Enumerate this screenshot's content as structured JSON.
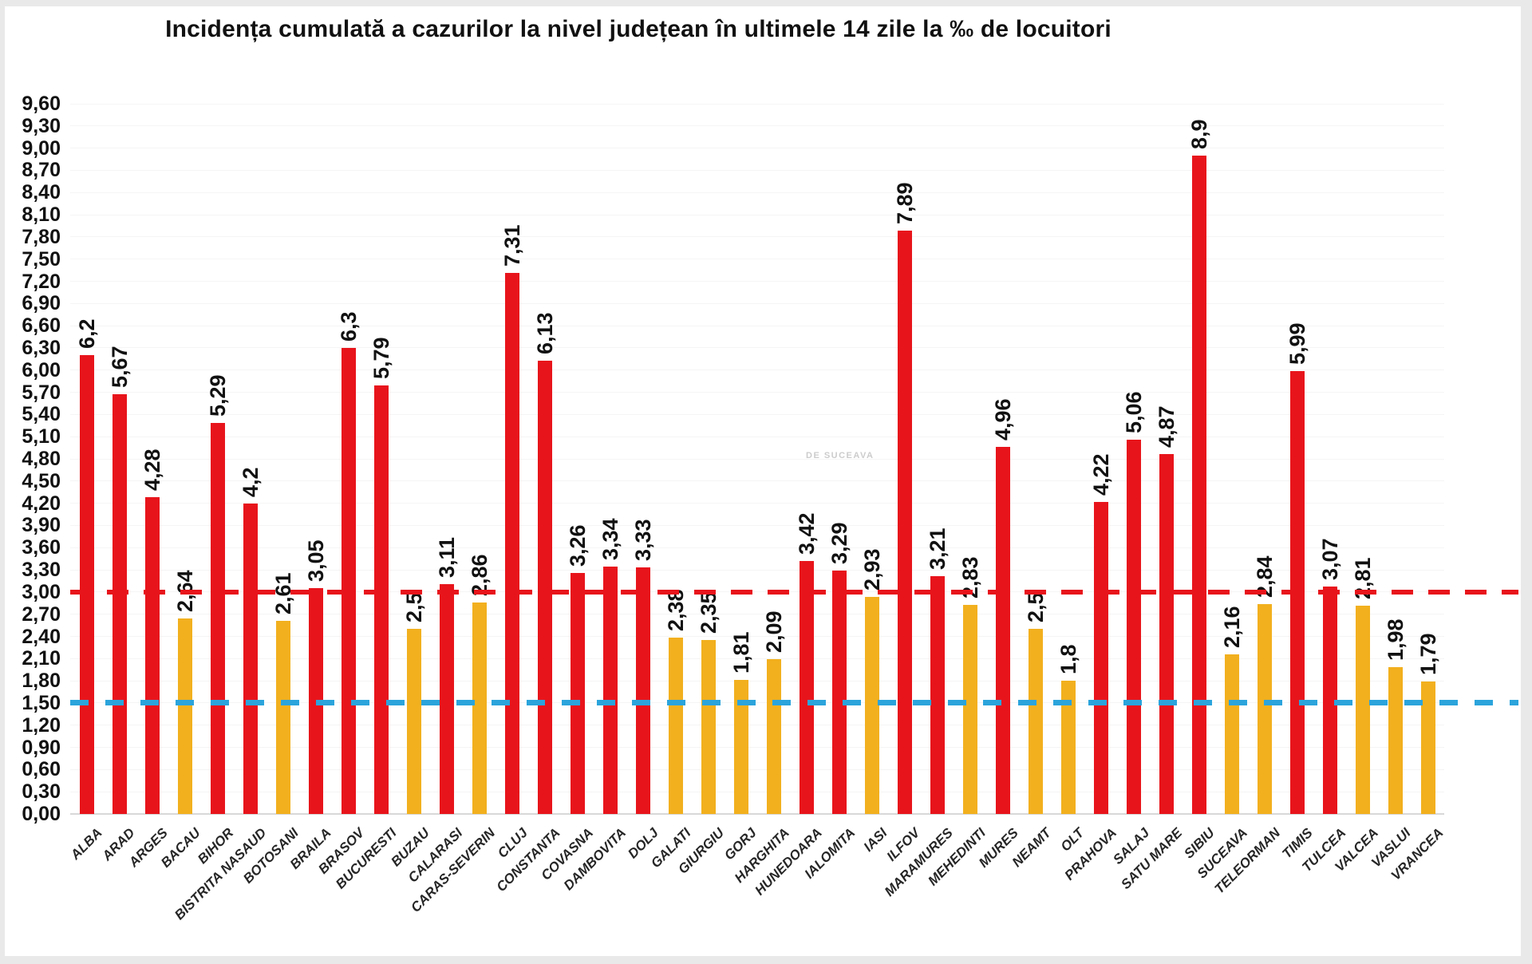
{
  "title": "Incidența cumulată a cazurilor la nivel județean în ultimele 14 zile la ‰ de locuitori",
  "watermark": "DE SUCEAVA",
  "colors": {
    "bar_red": "#e8141b",
    "bar_yellow": "#f2b01e",
    "reference_red": "#e8141b",
    "reference_blue": "#2ba4dc",
    "axis_line": "#d8d8d8",
    "text": "#111111"
  },
  "chart_data": {
    "type": "bar",
    "title": "Incidența cumulată a cazurilor la nivel județean în ultimele 14 zile la ‰ de locuitori",
    "xlabel": "",
    "ylabel": "",
    "ylim": [
      0,
      9.6
    ],
    "ytick_step": 0.3,
    "ytick_format": "decimal-comma",
    "grid": "off",
    "legend": "none",
    "categories": [
      "ALBA",
      "ARAD",
      "ARGES",
      "BACAU",
      "BIHOR",
      "BISTRITA NASAUD",
      "BOTOSANI",
      "BRAILA",
      "BRASOV",
      "BUCURESTI",
      "BUZAU",
      "CALARASI",
      "CARAS-SEVERIN",
      "CLUJ",
      "CONSTANTA",
      "COVASNA",
      "DAMBOVITA",
      "DOLJ",
      "GALATI",
      "GIURGIU",
      "GORJ",
      "HARGHITA",
      "HUNEDOARA",
      "IALOMITA",
      "IASI",
      "ILFOV",
      "MARAMURES",
      "MEHEDINTI",
      "MURES",
      "NEAMT",
      "OLT",
      "PRAHOVA",
      "SALAJ",
      "SATU MARE",
      "SIBIU",
      "SUCEAVA",
      "TELEORMAN",
      "TIMIS",
      "TULCEA",
      "VALCEA",
      "VASLUI",
      "VRANCEA"
    ],
    "values": [
      6.2,
      5.67,
      4.28,
      2.64,
      5.29,
      4.2,
      2.61,
      3.05,
      6.3,
      5.79,
      2.5,
      3.11,
      2.86,
      7.31,
      6.13,
      3.26,
      3.34,
      3.33,
      2.38,
      2.35,
      1.81,
      2.09,
      3.42,
      3.29,
      2.93,
      7.89,
      3.21,
      2.83,
      4.96,
      2.5,
      1.8,
      4.22,
      5.06,
      4.87,
      8.9,
      2.16,
      2.84,
      5.99,
      3.07,
      2.81,
      1.98,
      1.79
    ],
    "value_labels": [
      "6,2",
      "5,67",
      "4,28",
      "2,64",
      "5,29",
      "4,2",
      "2,61",
      "3,05",
      "6,3",
      "5,79",
      "2,5",
      "3,11",
      "2,86",
      "7,31",
      "6,13",
      "3,26",
      "3,34",
      "3,33",
      "2,38",
      "2,35",
      "1,81",
      "2,09",
      "3,42",
      "3,29",
      "2,93",
      "7,89",
      "3,21",
      "2,83",
      "4,96",
      "2,5",
      "1,8",
      "4,22",
      "5,06",
      "4,87",
      "8,9",
      "2,16",
      "2,84",
      "5,99",
      "3,07",
      "2,81",
      "1,98",
      "1,79"
    ],
    "bar_color_rule": {
      "threshold": 3.0,
      "at_or_above": "#e8141b",
      "below": "#f2b01e"
    },
    "reference_lines": [
      {
        "name": "red-threshold",
        "value": 3.0,
        "style": "dashed",
        "color": "#e8141b"
      },
      {
        "name": "blue-threshold",
        "value": 1.5,
        "style": "dashed",
        "color": "#2ba4dc"
      }
    ]
  }
}
